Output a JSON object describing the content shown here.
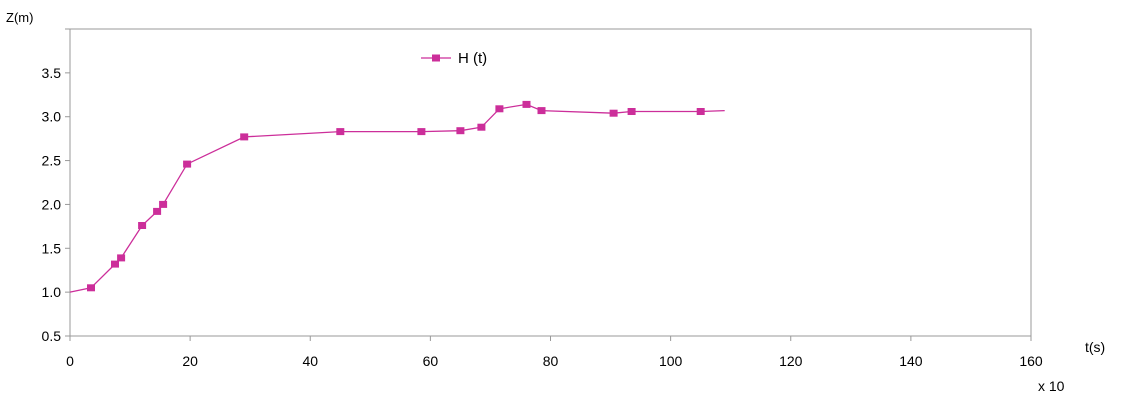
{
  "chart_data": {
    "type": "line",
    "title": "",
    "ylabel": "Z(m)",
    "xlabel": "t(s)",
    "x_multiplier": "x 10",
    "xlim": [
      0,
      160
    ],
    "ylim": [
      0.5,
      4.0
    ],
    "x_ticks": [
      "0",
      "20",
      "40",
      "60",
      "80",
      "100",
      "120",
      "140",
      "160"
    ],
    "y_ticks": [
      "0.5",
      "1.0",
      "1.5",
      "2.0",
      "2.5",
      "3.0",
      "3.5"
    ],
    "grid": false,
    "legend": "top-center",
    "series": [
      {
        "name": "H (t)",
        "color": "#cc2e9a",
        "line": [
          [
            0,
            1.0
          ],
          [
            3.5,
            1.05
          ],
          [
            7.5,
            1.32
          ],
          [
            8.5,
            1.39
          ],
          [
            12,
            1.76
          ],
          [
            14.5,
            1.92
          ],
          [
            15.5,
            2.0
          ],
          [
            19.5,
            2.46
          ],
          [
            29,
            2.77
          ],
          [
            45,
            2.83
          ],
          [
            58.5,
            2.83
          ],
          [
            65,
            2.84
          ],
          [
            68.5,
            2.88
          ],
          [
            71.5,
            3.09
          ],
          [
            76,
            3.14
          ],
          [
            78.5,
            3.07
          ],
          [
            90.5,
            3.04
          ],
          [
            93.5,
            3.06
          ],
          [
            105,
            3.06
          ],
          [
            109,
            3.07
          ]
        ],
        "markers": [
          [
            3.5,
            1.05
          ],
          [
            7.5,
            1.32
          ],
          [
            8.5,
            1.39
          ],
          [
            12,
            1.76
          ],
          [
            14.5,
            1.92
          ],
          [
            15.5,
            2.0
          ],
          [
            19.5,
            2.46
          ],
          [
            29,
            2.77
          ],
          [
            45,
            2.83
          ],
          [
            58.5,
            2.83
          ],
          [
            65,
            2.84
          ],
          [
            68.5,
            2.88
          ],
          [
            71.5,
            3.09
          ],
          [
            76,
            3.14
          ],
          [
            78.5,
            3.07
          ],
          [
            90.5,
            3.04
          ],
          [
            93.5,
            3.06
          ],
          [
            105,
            3.06
          ]
        ]
      }
    ]
  }
}
